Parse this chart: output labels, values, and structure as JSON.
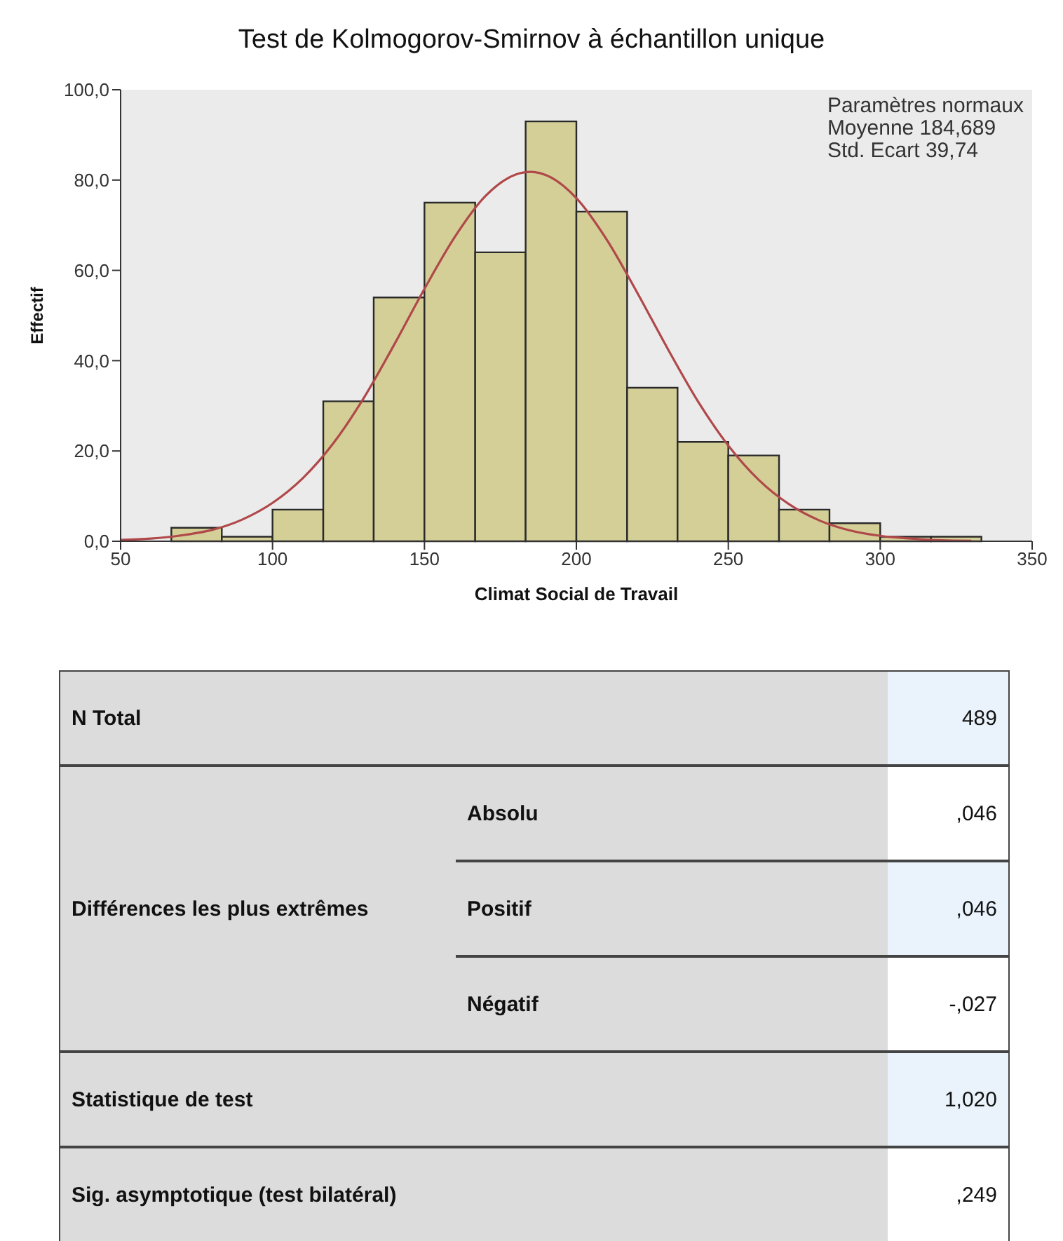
{
  "chart_data": [
    {
      "type": "histogram",
      "title": "Test de Kolmogorov-Smirnov à échantillon unique",
      "xlabel": "Climat Social de Travail",
      "ylabel": "Effectif",
      "bins": [
        66.7,
        83.3,
        100,
        116.7,
        133.3,
        150,
        166.7,
        183.3,
        200,
        216.7,
        233.3,
        250,
        266.7,
        283.3,
        300,
        316.7,
        333.3
      ],
      "values": [
        3,
        1,
        7,
        31,
        54,
        75,
        64,
        93,
        73,
        34,
        22,
        19,
        7,
        4,
        1,
        1
      ],
      "color": "#d4cf97",
      "series": [
        {
          "type": "line",
          "color": "#b0484a",
          "x": [
            50,
            60,
            70,
            80,
            90,
            100,
            110,
            120,
            130,
            140,
            150,
            160,
            170,
            180,
            185,
            190,
            200,
            210,
            220,
            230,
            240,
            250,
            260,
            270,
            280,
            290,
            300,
            310,
            320,
            330
          ],
          "values": [
            0.3,
            0.6,
            1.3,
            2.5,
            4.8,
            8.5,
            14,
            21.7,
            31.7,
            43.5,
            55.9,
            67.4,
            76.4,
            81.2,
            81.8,
            81.1,
            76,
            66.8,
            55.1,
            42.7,
            31,
            21.2,
            13.6,
            8.2,
            4.6,
            2.4,
            1.2,
            0.6,
            0.2,
            0.1
          ]
        }
      ],
      "xlim": [
        50,
        350
      ],
      "xticks": [
        50,
        100,
        150,
        200,
        250,
        300,
        350
      ],
      "ylim": [
        0,
        100
      ],
      "yticks": [
        {
          "value": 0,
          "label": "0,0"
        },
        {
          "value": 20,
          "label": "20,0"
        },
        {
          "value": 40,
          "label": "40,0"
        },
        {
          "value": 60,
          "label": "60,0"
        },
        {
          "value": 80,
          "label": "80,0"
        },
        {
          "value": 100,
          "label": "100,0"
        }
      ],
      "annotations": [
        "Paramètres normaux",
        "Moyenne 184,689",
        "Std. Ecart 39,74"
      ]
    },
    {
      "type": "other",
      "annotations": [
        "N Total",
        "489",
        "Différences les plus extrêmes",
        "Absolu",
        ",046",
        "Positif",
        ",046",
        "Négatif",
        "-,027",
        "Statistique de test",
        "1,020",
        "Sig. asymptotique (test bilatéral)",
        ",249"
      ]
    }
  ]
}
